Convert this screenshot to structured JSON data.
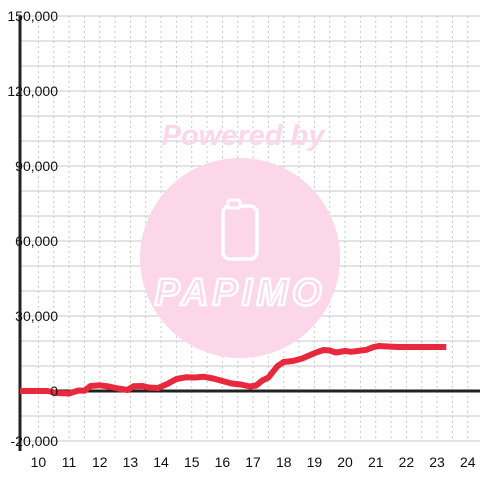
{
  "watermark": {
    "caption": "Powered by",
    "brand": "PAPIMO"
  },
  "chart_data": {
    "type": "line",
    "title": "",
    "xlabel": "",
    "ylabel": "",
    "xlim": [
      9.4,
      24.4
    ],
    "ylim": [
      -20000,
      150000
    ],
    "grid": true,
    "x_ticks": [
      "10",
      "11",
      "12",
      "13",
      "14",
      "15",
      "16",
      "17",
      "18",
      "19",
      "20",
      "21",
      "22",
      "23",
      "24"
    ],
    "y_ticks": [
      "150,000",
      "120,000",
      "90,000",
      "60,000",
      "30,000",
      "0",
      "-20,000"
    ],
    "series": [
      {
        "color": "#e8283c",
        "points": [
          [
            9.4,
            0
          ],
          [
            10.1,
            0
          ],
          [
            10.3,
            0
          ],
          [
            10.6,
            -800
          ],
          [
            11.0,
            -1000
          ],
          [
            11.3,
            200
          ],
          [
            11.5,
            100
          ],
          [
            11.7,
            2000
          ],
          [
            12.0,
            2300
          ],
          [
            12.3,
            1800
          ],
          [
            12.6,
            1000
          ],
          [
            12.9,
            400
          ],
          [
            13.1,
            1900
          ],
          [
            13.4,
            2000
          ],
          [
            13.6,
            1400
          ],
          [
            13.9,
            1200
          ],
          [
            14.2,
            2800
          ],
          [
            14.5,
            4800
          ],
          [
            14.8,
            5500
          ],
          [
            15.1,
            5400
          ],
          [
            15.4,
            5700
          ],
          [
            15.7,
            5000
          ],
          [
            16.0,
            4000
          ],
          [
            16.3,
            3000
          ],
          [
            16.6,
            2600
          ],
          [
            16.9,
            1800
          ],
          [
            17.1,
            2200
          ],
          [
            17.3,
            4200
          ],
          [
            17.5,
            5400
          ],
          [
            17.8,
            10000
          ],
          [
            18.0,
            11600
          ],
          [
            18.3,
            12000
          ],
          [
            18.6,
            13000
          ],
          [
            18.9,
            14600
          ],
          [
            19.1,
            15600
          ],
          [
            19.3,
            16400
          ],
          [
            19.5,
            16200
          ],
          [
            19.7,
            15400
          ],
          [
            19.9,
            15800
          ],
          [
            20.0,
            16000
          ],
          [
            20.2,
            15700
          ],
          [
            20.4,
            16000
          ],
          [
            20.7,
            16500
          ],
          [
            20.9,
            17500
          ],
          [
            21.1,
            18000
          ],
          [
            21.4,
            17800
          ],
          [
            21.7,
            17600
          ],
          [
            22.0,
            17600
          ],
          [
            22.5,
            17600
          ],
          [
            23.3,
            17600
          ]
        ]
      }
    ],
    "colors": {
      "grid": "#c8c8c8",
      "axis": "#222222",
      "watermark": "#fcd6e9"
    }
  }
}
